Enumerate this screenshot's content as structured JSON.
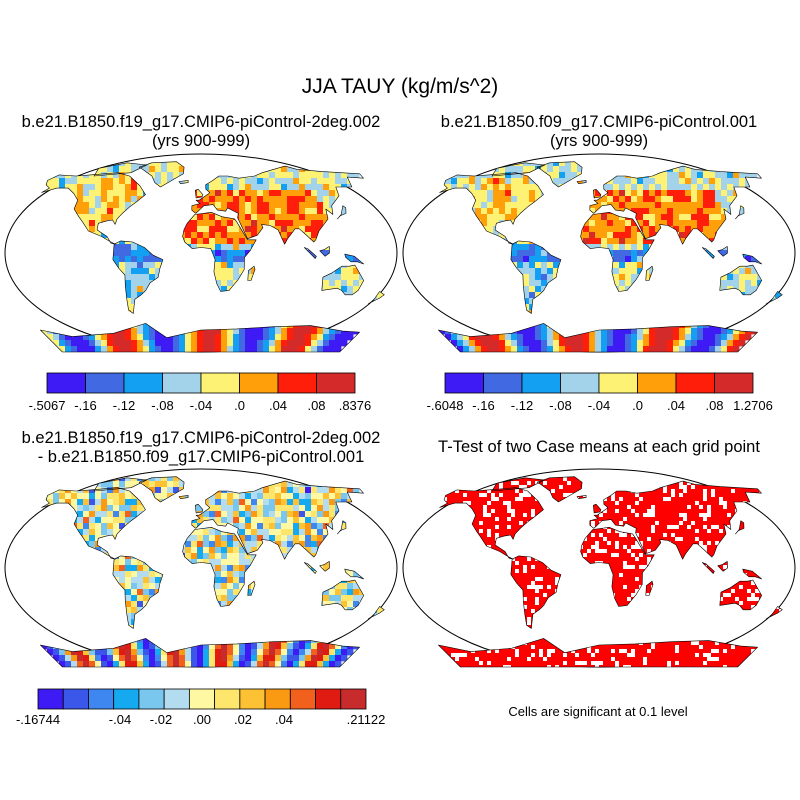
{
  "figure": {
    "main_title": "JJA TAUY (kg/m/s^2)",
    "note": "Cells are significant at 0.1 level"
  },
  "panels": [
    {
      "id": "case1",
      "title_line1": "b.e21.B1850.f19_g17.CMIP6-piControl-2deg.002",
      "title_line2": "(yrs 900-999)",
      "map": "tauy-mean"
    },
    {
      "id": "case2",
      "title_line1": "b.e21.B1850.f09_g17.CMIP6-piControl.001",
      "title_line2": "(yrs 900-999)",
      "map": "tauy-mean"
    },
    {
      "id": "difference",
      "title_line1": "b.e21.B1850.f19_g17.CMIP6-piControl-2deg.002",
      "title_line2": "- b.e21.B1850.f09_g17.CMIP6-piControl.001",
      "map": "tauy-difference"
    },
    {
      "id": "ttest",
      "title_line1": "T-Test of two Case means at each grid point",
      "title_line2": "",
      "map": "significance"
    }
  ],
  "colorbars": [
    {
      "panel": "case1",
      "colors": [
        "#3e1af5",
        "#4169e1",
        "#14a0f2",
        "#a2d3eb",
        "#fdf274",
        "#ff9f0a",
        "#ff1e0a",
        "#d52a2a"
      ],
      "labels": [
        "-.5067",
        "-.16",
        "-.12",
        "-.08",
        "-.04",
        ".0",
        ".04",
        ".08",
        ".8376"
      ]
    },
    {
      "panel": "case2",
      "colors": [
        "#3e1af5",
        "#4169e1",
        "#14a0f2",
        "#a2d3eb",
        "#fdf274",
        "#ff9f0a",
        "#ff1e0a",
        "#d52a2a"
      ],
      "labels": [
        "-.6048",
        "-.16",
        "-.12",
        "-.08",
        "-.04",
        ".0",
        ".04",
        ".08",
        "1.2706"
      ]
    },
    {
      "panel": "difference",
      "colors": [
        "#3e1af5",
        "#3a57ea",
        "#3e86f0",
        "#15aaf0",
        "#79c7ee",
        "#b4dcf0",
        "#fff8a3",
        "#fde66b",
        "#fcc234",
        "#fa9a13",
        "#f2601d",
        "#e01c12",
        "#c72b2b"
      ],
      "labels": [
        "-.16744",
        "",
        "-.04",
        "-.02",
        ".00",
        ".02",
        ".04",
        "",
        ".21122"
      ]
    }
  ],
  "chart_data": {
    "type": "heatmap",
    "title": "JJA TAUY (kg/m/s^2)",
    "variable": "TAUY",
    "season": "JJA",
    "units": "kg/m/s^2",
    "projection": "global map",
    "panels": [
      {
        "title": "b.e21.B1850.f19_g17.CMIP6-piControl-2deg.002 (yrs 900-999)",
        "min": -0.5067,
        "max": 0.8376,
        "contour_levels": [
          -0.16,
          -0.12,
          -0.08,
          -0.04,
          0.0,
          0.04,
          0.08
        ]
      },
      {
        "title": "b.e21.B1850.f09_g17.CMIP6-piControl.001 (yrs 900-999)",
        "min": -0.6048,
        "max": 1.2706,
        "contour_levels": [
          -0.16,
          -0.12,
          -0.08,
          -0.04,
          0.0,
          0.04,
          0.08
        ]
      },
      {
        "title": "b.e21.B1850.f19_g17.CMIP6-piControl-2deg.002 - b.e21.B1850.f09_g17.CMIP6-piControl.001",
        "min": -0.16744,
        "max": 0.21122,
        "labeled_levels": [
          -0.04,
          -0.02,
          0.0,
          0.02,
          0.04
        ]
      },
      {
        "title": "T-Test of two Case means at each grid point",
        "significance_level": 0.1,
        "significant_color": "#ff0000"
      }
    ]
  }
}
